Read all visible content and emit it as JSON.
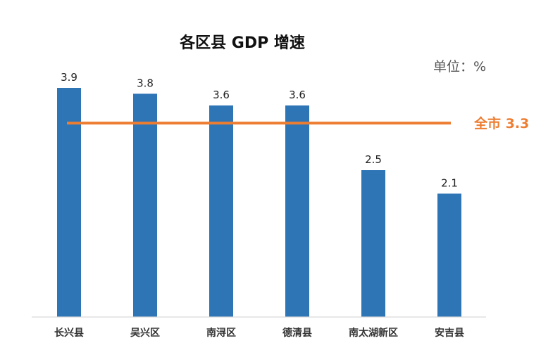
{
  "chart_data": {
    "type": "bar",
    "title": "各区县 GDP 增速",
    "unit_label": "单位：%",
    "categories": [
      "长兴县",
      "吴兴区",
      "南浔区",
      "德清县",
      "南太湖新区",
      "安吉县"
    ],
    "values": [
      3.9,
      3.8,
      3.6,
      3.6,
      2.5,
      2.1
    ],
    "value_labels": [
      "3.9",
      "3.8",
      "3.6",
      "3.6",
      "2.5",
      "2.1"
    ],
    "ylim": [
      0,
      3.9
    ],
    "grid": false,
    "reference_line": {
      "label": "全市 3.3",
      "value": 3.3
    },
    "colors": {
      "bar": "#2E75B6",
      "reference": "#ED7D31",
      "axis": "#D9D9D9"
    }
  }
}
